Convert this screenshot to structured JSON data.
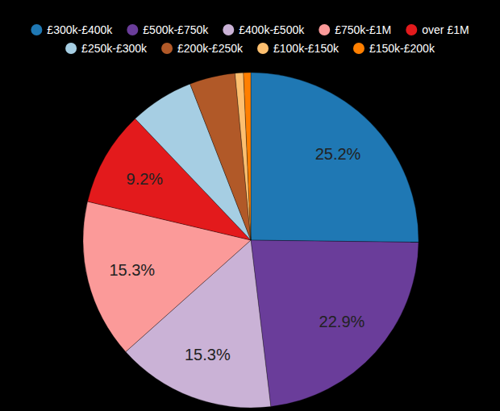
{
  "chart_data": {
    "type": "pie",
    "categories": [
      "£300k-£400k",
      "£500k-£750k",
      "£400k-£500k",
      "£750k-£1M",
      "over £1M",
      "£250k-£300k",
      "£200k-£250k",
      "£100k-£150k",
      "£150k-£200k"
    ],
    "values": [
      25.2,
      22.9,
      15.3,
      15.3,
      9.2,
      6.2,
      4.4,
      0.8,
      0.7
    ],
    "value_labels": [
      "25.2%",
      "22.9%",
      "15.3%",
      "15.3%",
      "9.2%",
      null,
      null,
      null,
      null
    ],
    "colors": [
      "#1f78b4",
      "#6a3d9a",
      "#cab2d6",
      "#fb9a99",
      "#e31a1c",
      "#a6cee3",
      "#b15928",
      "#fdbf6f",
      "#ff7f00"
    ],
    "data_labels": true,
    "legend": "top"
  }
}
